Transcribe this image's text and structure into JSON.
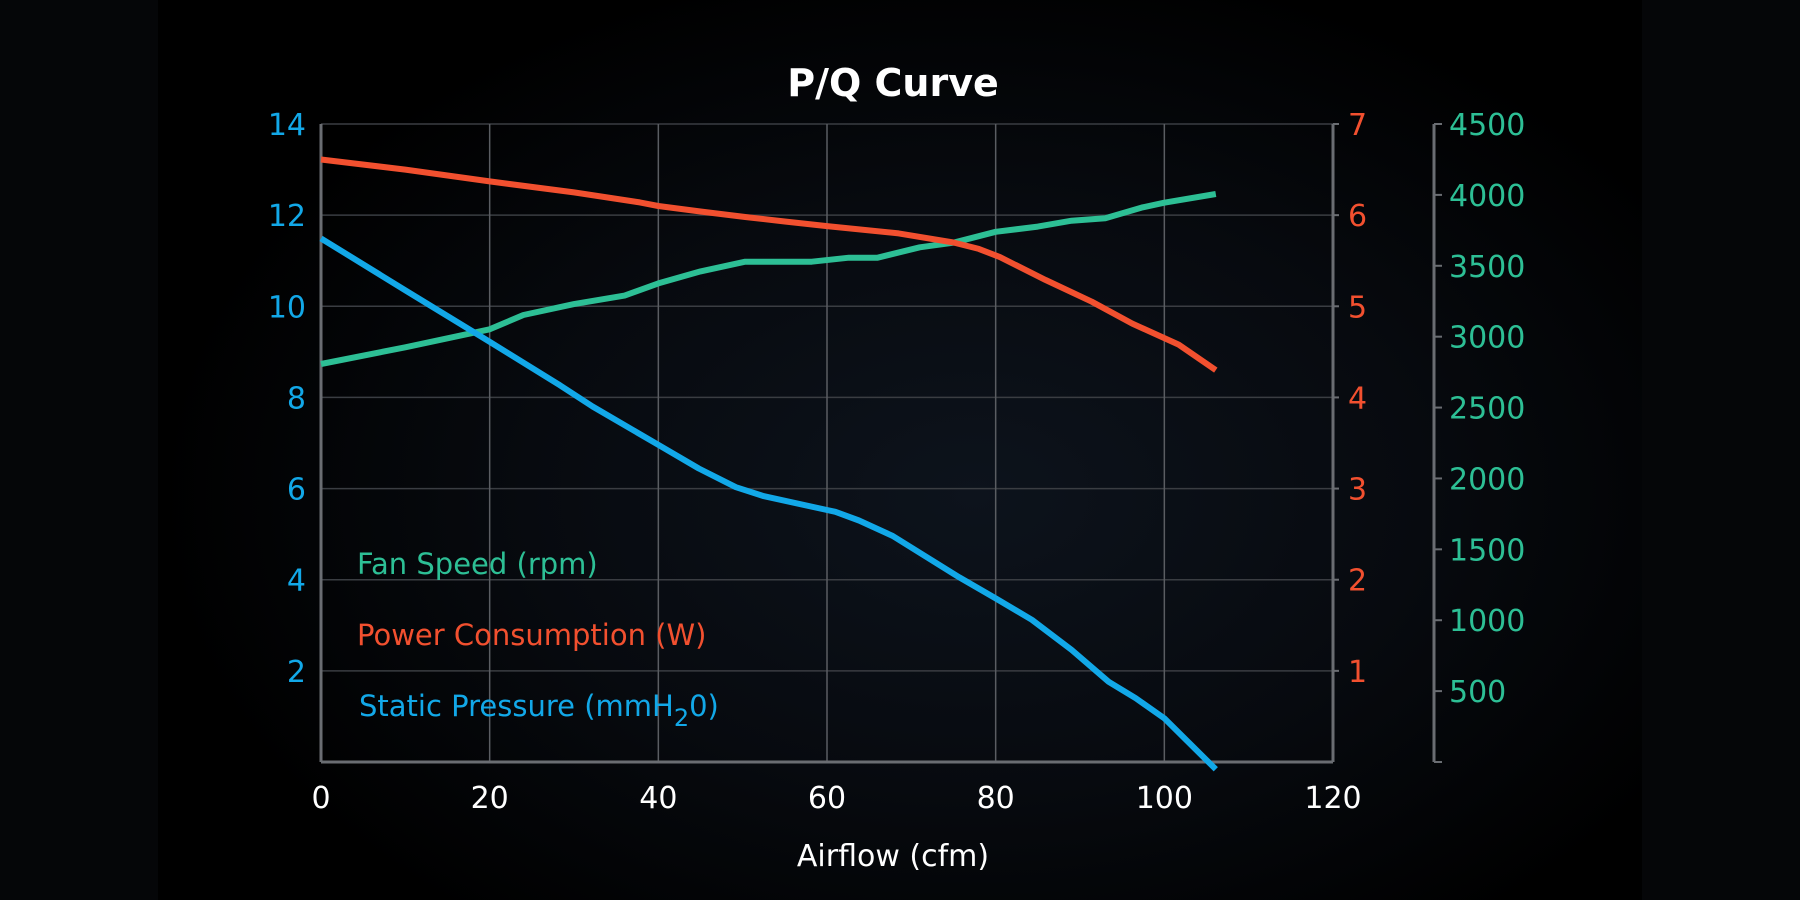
{
  "chart_data": {
    "type": "line",
    "title": "P/Q Curve",
    "xlabel": "Airflow (cfm)",
    "xlim": [
      0,
      120
    ],
    "x_ticks": [
      0,
      20,
      40,
      60,
      80,
      100,
      120
    ],
    "x_tick_labels": [
      "0",
      "20",
      "40",
      "60",
      "80",
      "100",
      "120"
    ],
    "grid": true,
    "legend_placement": "bottom-left",
    "axes": {
      "left": {
        "series": "Static Pressure (mmH20)",
        "ylim": [
          0,
          14
        ],
        "ticks": [
          2,
          4,
          6,
          8,
          10,
          12,
          14
        ],
        "tick_labels": [
          "2",
          "4",
          "6",
          "8",
          "10",
          "12",
          "14"
        ],
        "color": "#12a8e8"
      },
      "right_inner": {
        "series": "Power Consumption (W)",
        "ylim": [
          0,
          7
        ],
        "ticks": [
          1,
          2,
          3,
          4,
          5,
          6,
          7
        ],
        "tick_labels": [
          "1",
          "2",
          "3",
          "4",
          "5",
          "6",
          "7"
        ],
        "color": "#f2502f"
      },
      "right_outer": {
        "series": "Fan Speed (rpm)",
        "ylim": [
          0,
          4500
        ],
        "ticks": [
          500,
          1000,
          1500,
          2000,
          2500,
          3000,
          3500,
          4000,
          4500
        ],
        "tick_labels": [
          "500",
          "1000",
          "1500",
          "2000",
          "2500",
          "3000",
          "3500",
          "4000",
          "4500"
        ],
        "color": "#2dbf95"
      }
    },
    "series": [
      {
        "name": "Fan Speed (rpm)",
        "legend_main": "Fan Speed (rpm)",
        "axis": "right_outer",
        "color": "#2dbf95",
        "x": [
          0,
          10,
          20,
          24,
          30,
          36,
          40,
          45,
          50.3,
          55,
          58.2,
          62.6,
          66,
          71,
          75,
          80,
          85,
          89,
          93,
          97.3,
          100,
          106.1
        ],
        "y": [
          2807,
          2925,
          3052,
          3153,
          3230,
          3290,
          3376,
          3460,
          3529,
          3529,
          3529,
          3557,
          3557,
          3630,
          3663,
          3740,
          3776,
          3818,
          3835,
          3910,
          3945,
          4006
        ]
      },
      {
        "name": "Power Consumption (W)",
        "legend_main": "Power Consumption (W)",
        "axis": "right_inner",
        "color": "#f2502f",
        "x": [
          0,
          10,
          20,
          30,
          37.8,
          40,
          45,
          50.3,
          55,
          60,
          68.5,
          75,
          78,
          80.5,
          85.9,
          91.4,
          96.2,
          101.7,
          106.1
        ],
        "y": [
          6.61,
          6.5,
          6.37,
          6.25,
          6.14,
          6.1,
          6.04,
          5.98,
          5.93,
          5.88,
          5.8,
          5.7,
          5.63,
          5.54,
          5.29,
          5.05,
          4.81,
          4.58,
          4.3
        ]
      },
      {
        "name": "Static Pressure (mmH20)",
        "legend_main": "Static Pressure (mmH",
        "legend_sub": "2",
        "legend_tail": "0)",
        "axis": "left",
        "color": "#12a8e8",
        "x": [
          0,
          10,
          20,
          28.3,
          32.2,
          40,
          44.8,
          49.2,
          52.4,
          60,
          61,
          63.8,
          67.8,
          75.7,
          80,
          84.3,
          89,
          93.4,
          96.6,
          100,
          106.1
        ],
        "y": [
          11.49,
          10.35,
          9.22,
          8.27,
          7.8,
          6.96,
          6.44,
          6.03,
          5.84,
          5.53,
          5.49,
          5.3,
          4.96,
          4.05,
          3.59,
          3.12,
          2.46,
          1.76,
          1.4,
          0.96,
          -0.16
        ]
      }
    ]
  }
}
